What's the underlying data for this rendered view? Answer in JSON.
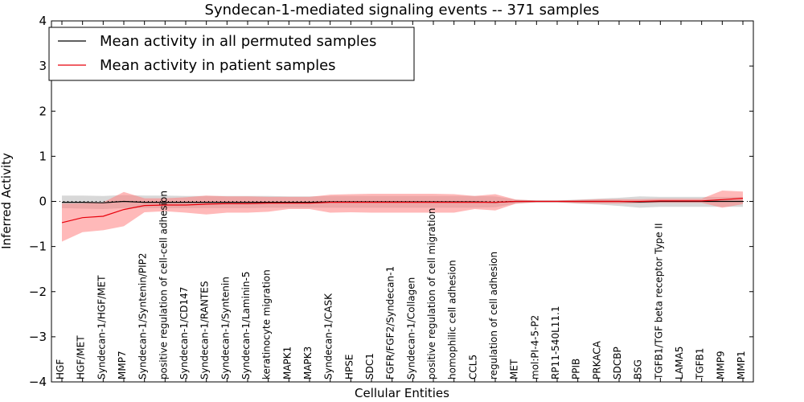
{
  "chart_data": {
    "type": "line",
    "title": "Syndecan-1-mediated signaling events -- 371 samples",
    "xlabel": "Cellular Entities",
    "ylabel": "Inferred Activity",
    "ylim": [
      -4,
      4
    ],
    "yticks": [
      -4,
      -3,
      -2,
      -1,
      0,
      1,
      2,
      3,
      4
    ],
    "ytick_labels": [
      "−4",
      "−3",
      "−2",
      "−1",
      "0",
      "1",
      "2",
      "3",
      "4"
    ],
    "legend_position": "top-left",
    "categories": [
      "HGF",
      "HGF/MET",
      "Syndecan-1/HGF/MET",
      "MMP7",
      "Syndecan-1/Syntenin/PIP2",
      "positive regulation of cell-cell adhesion",
      "Syndecan-1/CD147",
      "Syndecan-1/RANTES",
      "Syndecan-1/Syntenin",
      "Syndecan-1/Laminin-5",
      "keratinocyte migration",
      "MAPK1",
      "MAPK3",
      "Syndecan-1/CASK",
      "HPSE",
      "SDC1",
      "FGFR/FGF2/Syndecan-1",
      "Syndecan-1/Collagen",
      "positive regulation of cell migration",
      "homophilic cell adhesion",
      "CCL5",
      "regulation of cell adhesion",
      "MET",
      "mol:PI-4-5-P2",
      "RP11-540L11.1",
      "PPIB",
      "PRKACA",
      "SDCBP",
      "BSG",
      "TGFB1/TGF beta receptor Type II",
      "LAMA5",
      "TGFB1",
      "MMP9",
      "MMP1"
    ],
    "series": [
      {
        "name": "Mean activity in all permuted samples",
        "color": "#000000",
        "band_color": "#c8c8c8",
        "values": [
          -0.02,
          -0.02,
          -0.03,
          0.0,
          -0.02,
          -0.02,
          -0.02,
          -0.02,
          -0.02,
          -0.02,
          -0.02,
          -0.02,
          -0.02,
          -0.01,
          -0.01,
          -0.01,
          -0.01,
          -0.01,
          -0.01,
          -0.01,
          -0.01,
          -0.02,
          0.0,
          0.0,
          0.0,
          0.0,
          0.0,
          0.0,
          -0.01,
          0.0,
          0.0,
          0.0,
          0.0,
          0.0
        ],
        "lower": [
          -0.15,
          -0.16,
          -0.17,
          -0.15,
          -0.15,
          -0.15,
          -0.15,
          -0.15,
          -0.15,
          -0.15,
          -0.14,
          -0.14,
          -0.14,
          -0.14,
          -0.14,
          -0.14,
          -0.14,
          -0.14,
          -0.14,
          -0.14,
          -0.14,
          -0.13,
          -0.05,
          -0.02,
          -0.02,
          -0.05,
          -0.07,
          -0.1,
          -0.14,
          -0.12,
          -0.12,
          -0.12,
          -0.12,
          -0.12
        ],
        "upper": [
          0.13,
          0.13,
          0.12,
          0.14,
          0.13,
          0.13,
          0.12,
          0.12,
          0.12,
          0.12,
          0.12,
          0.11,
          0.11,
          0.12,
          0.12,
          0.12,
          0.12,
          0.12,
          0.12,
          0.12,
          0.12,
          0.11,
          0.04,
          0.02,
          0.02,
          0.04,
          0.06,
          0.08,
          0.11,
          0.1,
          0.1,
          0.1,
          0.1,
          0.1
        ]
      },
      {
        "name": "Mean activity in patient samples",
        "color": "#e8000b",
        "band_color": "#ff8080",
        "values": [
          -0.47,
          -0.36,
          -0.33,
          -0.18,
          -0.09,
          -0.08,
          -0.08,
          -0.06,
          -0.05,
          -0.05,
          -0.04,
          -0.04,
          -0.04,
          -0.02,
          -0.02,
          -0.02,
          -0.02,
          -0.02,
          -0.02,
          -0.02,
          -0.02,
          -0.02,
          0.0,
          0.0,
          0.0,
          0.0,
          0.0,
          0.0,
          0.0,
          0.01,
          0.01,
          0.01,
          0.04,
          0.07
        ],
        "lower": [
          -0.89,
          -0.68,
          -0.64,
          -0.55,
          -0.24,
          -0.22,
          -0.25,
          -0.29,
          -0.25,
          -0.25,
          -0.23,
          -0.17,
          -0.17,
          -0.25,
          -0.24,
          -0.25,
          -0.25,
          -0.25,
          -0.25,
          -0.25,
          -0.17,
          -0.2,
          -0.05,
          -0.02,
          -0.02,
          -0.04,
          -0.05,
          -0.05,
          -0.04,
          -0.03,
          -0.03,
          -0.03,
          -0.14,
          -0.06
        ],
        "upper": [
          -0.05,
          -0.04,
          -0.02,
          0.21,
          0.07,
          0.07,
          0.09,
          0.13,
          0.11,
          0.11,
          0.1,
          0.1,
          0.1,
          0.15,
          0.16,
          0.17,
          0.17,
          0.17,
          0.17,
          0.16,
          0.12,
          0.16,
          0.04,
          0.02,
          0.02,
          0.03,
          0.05,
          0.05,
          0.05,
          0.06,
          0.06,
          0.06,
          0.24,
          0.22
        ]
      }
    ]
  }
}
